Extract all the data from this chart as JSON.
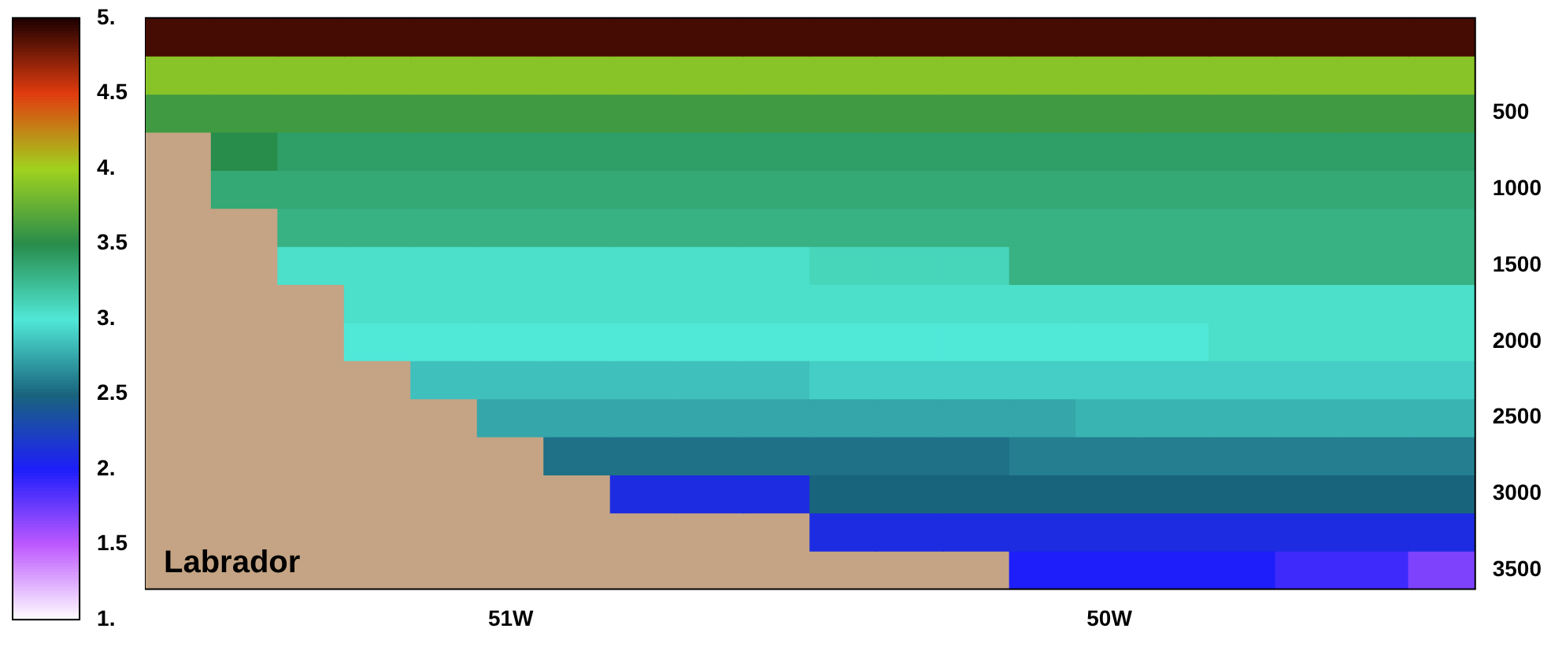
{
  "chart_data": {
    "type": "heatmap",
    "categories": [
      null,
      null,
      null,
      null,
      null,
      "51W",
      null,
      null,
      null,
      null,
      null,
      null,
      null,
      null,
      "50W",
      null,
      null,
      null,
      null,
      null
    ],
    "y_categories": [
      null,
      null,
      "500",
      null,
      "1000",
      null,
      "1500",
      null,
      "2000",
      null,
      "2500",
      null,
      "3000",
      null,
      "3500"
    ],
    "cells": [
      [
        4.9,
        4.9,
        4.9,
        4.9,
        4.9,
        4.9,
        4.9,
        4.9,
        4.9,
        4.9,
        4.9,
        4.9,
        4.9,
        4.9,
        4.9,
        4.9,
        4.9,
        4.9,
        4.9,
        4.9
      ],
      [
        3.9,
        3.9,
        3.9,
        3.9,
        3.9,
        3.9,
        3.9,
        3.9,
        3.9,
        3.9,
        3.9,
        3.9,
        3.9,
        3.9,
        3.9,
        3.9,
        3.9,
        3.9,
        3.9,
        3.9
      ],
      [
        3.6,
        3.6,
        3.6,
        3.6,
        3.6,
        3.6,
        3.6,
        3.6,
        3.6,
        3.6,
        3.6,
        3.6,
        3.6,
        3.6,
        3.6,
        3.6,
        3.6,
        3.6,
        3.6,
        3.6
      ],
      [
        null,
        3.5,
        3.4,
        3.4,
        3.4,
        3.4,
        3.4,
        3.4,
        3.4,
        3.4,
        3.4,
        3.4,
        3.4,
        3.4,
        3.4,
        3.4,
        3.4,
        3.4,
        3.4,
        3.4
      ],
      [
        null,
        3.35,
        3.35,
        3.35,
        3.35,
        3.35,
        3.35,
        3.35,
        3.35,
        3.35,
        3.35,
        3.35,
        3.35,
        3.35,
        3.35,
        3.35,
        3.35,
        3.35,
        3.35,
        3.35
      ],
      [
        null,
        null,
        3.3,
        3.3,
        3.3,
        3.3,
        3.3,
        3.3,
        3.3,
        3.3,
        3.3,
        3.3,
        3.3,
        3.3,
        3.3,
        3.3,
        3.3,
        3.3,
        3.3,
        3.3
      ],
      [
        null,
        null,
        3.05,
        3.05,
        3.05,
        3.05,
        3.05,
        3.05,
        3.05,
        3.05,
        3.1,
        3.1,
        3.1,
        3.3,
        3.3,
        3.3,
        3.3,
        3.3,
        3.3,
        3.3
      ],
      [
        null,
        null,
        null,
        3.05,
        3.05,
        3.05,
        3.05,
        3.05,
        3.05,
        3.05,
        3.05,
        3.05,
        3.05,
        3.05,
        3.05,
        3.05,
        3.05,
        3.05,
        3.05,
        3.05
      ],
      [
        null,
        null,
        null,
        3.0,
        3.0,
        3.0,
        3.0,
        3.0,
        3.0,
        3.0,
        3.0,
        3.0,
        3.0,
        3.0,
        3.0,
        3.0,
        3.05,
        3.05,
        3.05,
        3.05
      ],
      [
        null,
        null,
        null,
        null,
        2.85,
        2.85,
        2.85,
        2.85,
        2.85,
        2.85,
        2.9,
        2.9,
        2.9,
        2.9,
        2.9,
        2.9,
        2.9,
        2.9,
        2.9,
        2.9
      ],
      [
        null,
        null,
        null,
        null,
        null,
        2.75,
        2.75,
        2.75,
        2.75,
        2.75,
        2.75,
        2.75,
        2.75,
        2.75,
        2.8,
        2.8,
        2.8,
        2.8,
        2.8,
        2.8
      ],
      [
        null,
        null,
        null,
        null,
        null,
        null,
        2.55,
        2.55,
        2.55,
        2.55,
        2.55,
        2.55,
        2.55,
        2.6,
        2.6,
        2.6,
        2.6,
        2.6,
        2.6,
        2.6
      ],
      [
        null,
        null,
        null,
        null,
        null,
        null,
        null,
        2.1,
        2.1,
        2.1,
        2.5,
        2.5,
        2.5,
        2.5,
        2.5,
        2.5,
        2.5,
        2.5,
        2.5,
        2.5
      ],
      [
        null,
        null,
        null,
        null,
        null,
        null,
        null,
        null,
        null,
        null,
        2.1,
        2.1,
        2.1,
        2.1,
        2.1,
        2.1,
        2.1,
        2.1,
        2.1,
        2.1
      ],
      [
        null,
        null,
        null,
        null,
        null,
        null,
        null,
        null,
        null,
        null,
        null,
        null,
        null,
        2.0,
        2.0,
        2.0,
        2.0,
        1.9,
        1.9,
        1.7
      ]
    ],
    "clim": [
      1,
      5
    ],
    "cticks": [
      {
        "value": 1,
        "label": "1."
      },
      1.5,
      {
        "value": 2,
        "label": "2."
      },
      2.5,
      {
        "value": 3,
        "label": "3."
      },
      3.5,
      {
        "value": 4,
        "label": "4."
      },
      4.5,
      {
        "value": 5,
        "label": "5."
      }
    ],
    "annotations": [
      "Labrador"
    ]
  }
}
